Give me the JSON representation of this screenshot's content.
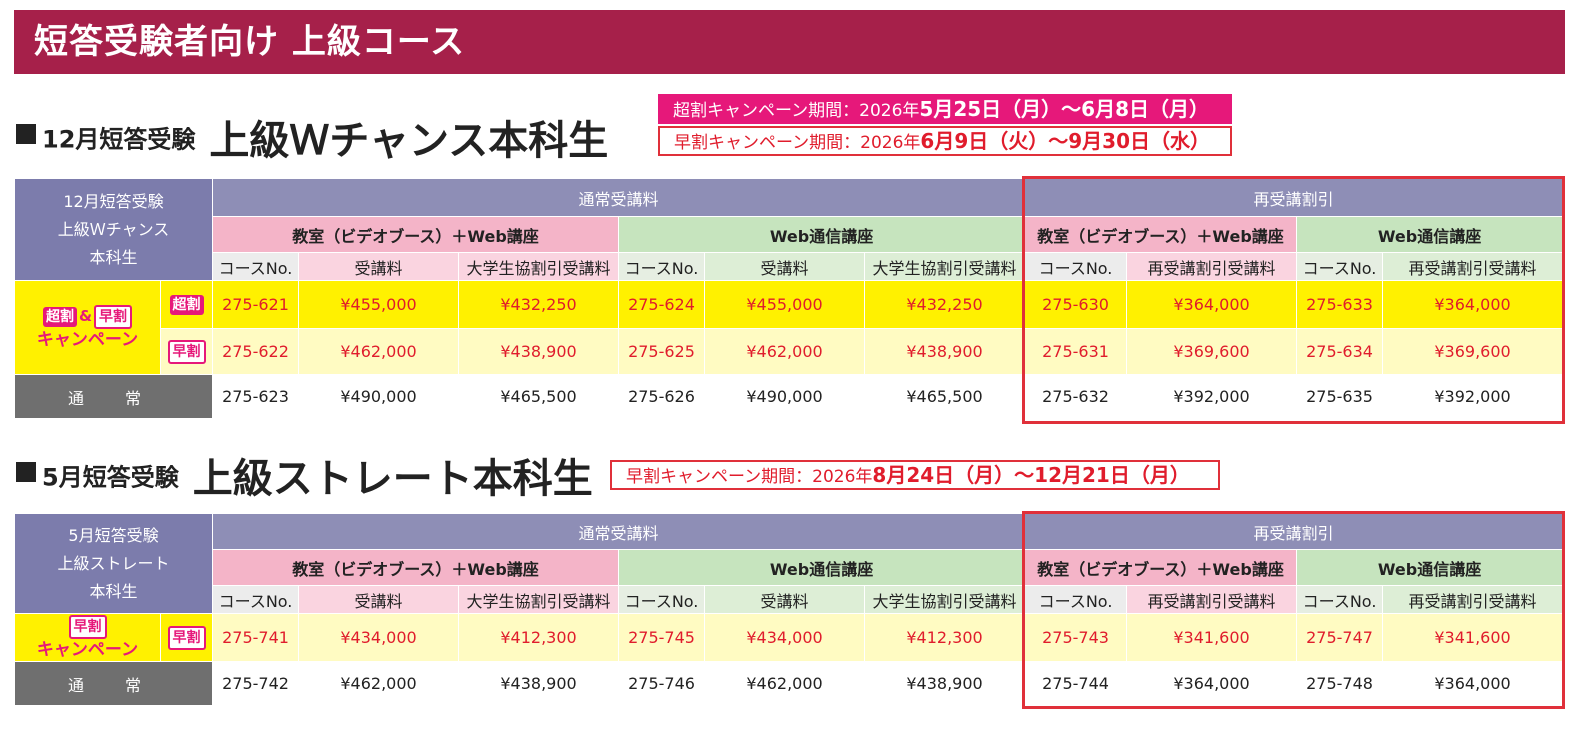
{
  "banner": "短答受験者向け 上級コース",
  "headers": {
    "regular": "通常受講料",
    "rediscount": "再受講割引",
    "classroom": "教室（ビデオブース）＋Web講座",
    "web": "Web通信講座",
    "course_no": "コースNo.",
    "fee": "受講料",
    "coop_fee": "大学生協割引受講料",
    "re_fee": "再受講割引受講料"
  },
  "tags": {
    "cho": "超割",
    "haya": "早割",
    "amp": "&",
    "campaign": "キャンペーン",
    "normal": "通 常"
  },
  "section1": {
    "prefix": "12月短答受験",
    "title": "上級Ｗチャンス本科生",
    "corner": [
      "12月短答受験",
      "上級Ｗチャンス",
      "本科生"
    ],
    "campaign_cho": {
      "label": "超割キャンペーン期間：2026年",
      "dates": "5月25日（月）～6月8日（月）"
    },
    "campaign_haya": {
      "label": "早割キャンペーン期間：2026年",
      "dates": "6月9日（火）～9月30日（水）"
    },
    "rows": [
      [
        "275-621",
        "¥455,000",
        "¥432,250",
        "275-624",
        "¥455,000",
        "¥432,250",
        "275-630",
        "¥364,000",
        "275-633",
        "¥364,000"
      ],
      [
        "275-622",
        "¥462,000",
        "¥438,900",
        "275-625",
        "¥462,000",
        "¥438,900",
        "275-631",
        "¥369,600",
        "275-634",
        "¥369,600"
      ],
      [
        "275-623",
        "¥490,000",
        "¥465,500",
        "275-626",
        "¥490,000",
        "¥465,500",
        "275-632",
        "¥392,000",
        "275-635",
        "¥392,000"
      ]
    ]
  },
  "section2": {
    "prefix": "5月短答受験",
    "title": "上級ストレート本科生",
    "corner": [
      "5月短答受験",
      "上級ストレート",
      "本科生"
    ],
    "campaign_haya": {
      "label": "早割キャンペーン期間：2026年",
      "dates": "8月24日（月）～12月21日（月）"
    },
    "rows": [
      [
        "275-741",
        "¥434,000",
        "¥412,300",
        "275-745",
        "¥434,000",
        "¥412,300",
        "275-743",
        "¥341,600",
        "275-747",
        "¥341,600"
      ],
      [
        "275-742",
        "¥462,000",
        "¥438,900",
        "275-746",
        "¥462,000",
        "¥438,900",
        "275-744",
        "¥364,000",
        "275-748",
        "¥364,000"
      ]
    ]
  }
}
